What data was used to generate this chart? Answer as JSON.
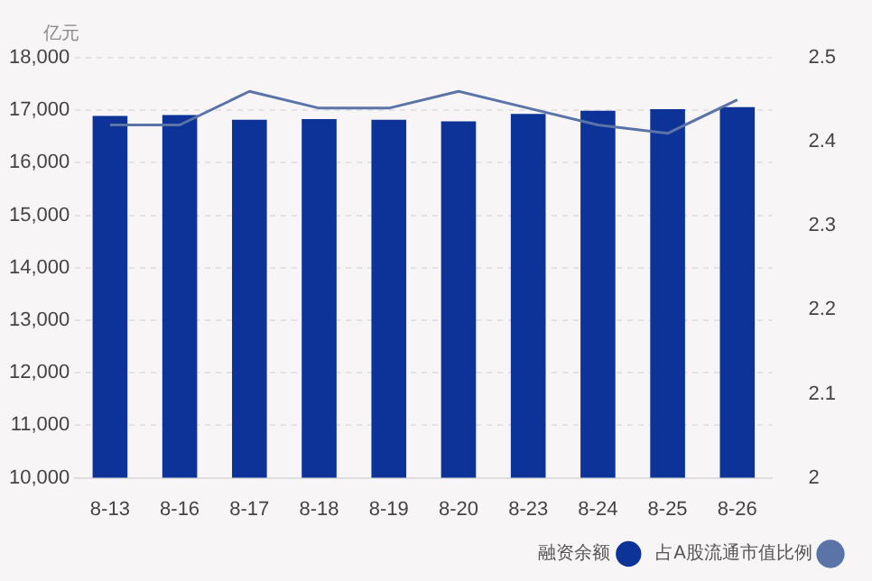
{
  "chart_data": {
    "type": "bar",
    "ylabel": "亿元",
    "categories": [
      "8-13",
      "8-16",
      "8-17",
      "8-18",
      "8-19",
      "8-20",
      "8-23",
      "8-24",
      "8-25",
      "8-26"
    ],
    "series": [
      {
        "name": "融资余额",
        "color": "#0d3399",
        "values": [
          16890,
          16910,
          16820,
          16830,
          16820,
          16790,
          16930,
          16990,
          17020,
          17060
        ]
      },
      {
        "name": "占A股流通市值比例",
        "type": "line",
        "axis": "y2",
        "color": "#5a74a8",
        "values": [
          2.42,
          2.42,
          2.46,
          2.44,
          2.44,
          2.46,
          2.44,
          2.42,
          2.41,
          2.45
        ]
      }
    ],
    "ylim": [
      10000,
      18000
    ],
    "yticks": [
      {
        "value": 10000,
        "label": "10,000"
      },
      {
        "value": 11000,
        "label": "11,000"
      },
      {
        "value": 12000,
        "label": "12,000"
      },
      {
        "value": 13000,
        "label": "13,000"
      },
      {
        "value": 14000,
        "label": "14,000"
      },
      {
        "value": 15000,
        "label": "15,000"
      },
      {
        "value": 16000,
        "label": "16,000"
      },
      {
        "value": 17000,
        "label": "17,000"
      },
      {
        "value": 18000,
        "label": "18,000"
      }
    ],
    "y2lim": [
      2,
      2.5
    ],
    "y2ticks": [
      2,
      2.1,
      2.2,
      2.3,
      2.4,
      2.5
    ],
    "grid": "y",
    "legend": "bottom right",
    "marker": "none",
    "line_style": "solid"
  }
}
